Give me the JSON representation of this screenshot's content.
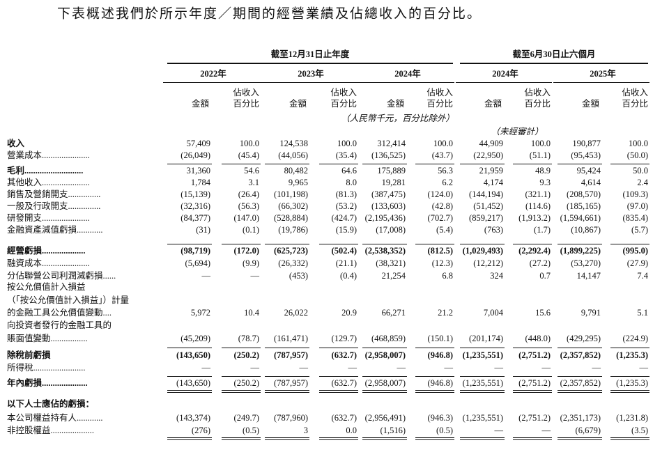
{
  "title": "下表概述我們於所示年度／期間的經營業績及佔總收入的百分比。",
  "column_groups": [
    "截至12月31日止年度",
    "截至6月30日止六個月"
  ],
  "years": [
    "2022年",
    "2023年",
    "2024年",
    "2024年",
    "2025年"
  ],
  "column_headers": {
    "amount": "金額",
    "percent": [
      "佔收入",
      "百分比"
    ]
  },
  "unit_note": "（人民幣千元，百分比除外）",
  "unaudited_note": "（未經審計）",
  "rows": [
    {
      "label": [
        "收入"
      ],
      "values": [
        "57,409",
        "100.0",
        "124,538",
        "100.0",
        "312,414",
        "100.0",
        "44,909",
        "100.0",
        "190,877",
        "100.0"
      ]
    },
    {
      "label": [
        "營業成本......................"
      ],
      "values": [
        "(26,049)",
        "(45.4)",
        "(44,056)",
        "(35.4)",
        "(136,525)",
        "(43.7)",
        "(22,950)",
        "(51.1)",
        "(95,453)",
        "(50.0)"
      ]
    },
    {
      "label": [
        "毛利..........................."
      ],
      "values": [
        "31,360",
        "54.6",
        "80,482",
        "64.6",
        "175,889",
        "56.3",
        "21,959",
        "48.9",
        "95,424",
        "50.0"
      ]
    },
    {
      "label": [
        "其他收入......................"
      ],
      "values": [
        "1,784",
        "3.1",
        "9,965",
        "8.0",
        "19,281",
        "6.2",
        "4,174",
        "9.3",
        "4,614",
        "2.4"
      ]
    },
    {
      "label": [
        "銷售及營銷開支..............."
      ],
      "values": [
        "(15,139)",
        "(26.4)",
        "(101,198)",
        "(81.3)",
        "(387,475)",
        "(124.0)",
        "(144,194)",
        "(321.1)",
        "(208,570)",
        "(109.3)"
      ]
    },
    {
      "label": [
        "一般及行政開支..............."
      ],
      "values": [
        "(32,316)",
        "(56.3)",
        "(66,302)",
        "(53.2)",
        "(133,603)",
        "(42.8)",
        "(51,452)",
        "(114.6)",
        "(185,165)",
        "(97.0)"
      ]
    },
    {
      "label": [
        "研發開支......................"
      ],
      "values": [
        "(84,377)",
        "(147.0)",
        "(528,884)",
        "(424.7)",
        "(2,195,436)",
        "(702.7)",
        "(859,217)",
        "(1,913.2)",
        "(1,594,661)",
        "(835.4)"
      ]
    },
    {
      "label": [
        "金融資產減值虧損............"
      ],
      "values": [
        "(31)",
        "(0.1)",
        "(19,786)",
        "(15.9)",
        "(17,008)",
        "(5.4)",
        "(763)",
        "(1.7)",
        "(10,867)",
        "(5.7)"
      ]
    },
    {
      "label": [
        "經營虧損...................."
      ],
      "values": [
        "(98,719)",
        "(172.0)",
        "(625,723)",
        "(502.4)",
        "(2,538,352)",
        "(812.5)",
        "(1,029,493)",
        "(2,292.4)",
        "(1,899,225)",
        "(995.0)"
      ]
    },
    {
      "label": [
        "融資成本......................"
      ],
      "values": [
        "(5,694)",
        "(9.9)",
        "(26,332)",
        "(21.1)",
        "(38,321)",
        "(12.3)",
        "(12,212)",
        "(27.2)",
        "(53,270)",
        "(27.9)"
      ]
    },
    {
      "label": [
        "分佔聯營公司利潤減虧損......"
      ],
      "values": [
        "—",
        "—",
        "(453)",
        "(0.4)",
        "21,254",
        "6.8",
        "324",
        "0.7",
        "14,147",
        "7.4"
      ]
    },
    {
      "label": [
        "按公允價值計入損益",
        "（「按公允價值計入損益」）計量",
        "的金融工具公允價值變動...."
      ],
      "values": [
        "5,972",
        "10.4",
        "26,022",
        "20.9",
        "66,271",
        "21.2",
        "7,004",
        "15.6",
        "9,791",
        "5.1"
      ]
    },
    {
      "label": [
        "向投資者發行的金融工具的",
        "賬面值變動................."
      ],
      "values": [
        "(45,209)",
        "(78.7)",
        "(161,471)",
        "(129.7)",
        "(468,859)",
        "(150.1)",
        "(201,174)",
        "(448.0)",
        "(429,295)",
        "(224.9)"
      ]
    },
    {
      "label": [
        "除稅前虧損"
      ],
      "values": [
        "(143,650)",
        "(250.2)",
        "(787,957)",
        "(632.7)",
        "(2,958,007)",
        "(946.8)",
        "(1,235,551)",
        "(2,751.2)",
        "(2,357,852)",
        "(1,235.3)"
      ]
    },
    {
      "label": [
        "所得稅........................"
      ],
      "values": [
        "—",
        "—",
        "—",
        "—",
        "—",
        "—",
        "—",
        "—",
        "—",
        "—"
      ]
    },
    {
      "label": [
        "年內虧損....................."
      ],
      "values": [
        "(143,650)",
        "(250.2)",
        "(787,957)",
        "(632.7)",
        "(2,958,007)",
        "(946.8)",
        "(1,235,551)",
        "(2,751.2)",
        "(2,357,852)",
        "(1,235.3)"
      ]
    },
    {
      "label": [
        "以下人士應佔的虧損："
      ],
      "values": []
    },
    {
      "label": [
        "本公司權益持有人............"
      ],
      "values": [
        "(143,374)",
        "(249.7)",
        "(787,960)",
        "(632.7)",
        "(2,956,491)",
        "(946.3)",
        "(1,235,551)",
        "(2,751.2)",
        "(2,351,173)",
        "(1,231.8)"
      ]
    },
    {
      "label": [
        "非控股權益...................."
      ],
      "values": [
        "(276)",
        "(0.5)",
        "3",
        "0.0",
        "(1,516)",
        "(0.5)",
        "—",
        "—",
        "(6,679)",
        "(3.5)"
      ]
    }
  ]
}
